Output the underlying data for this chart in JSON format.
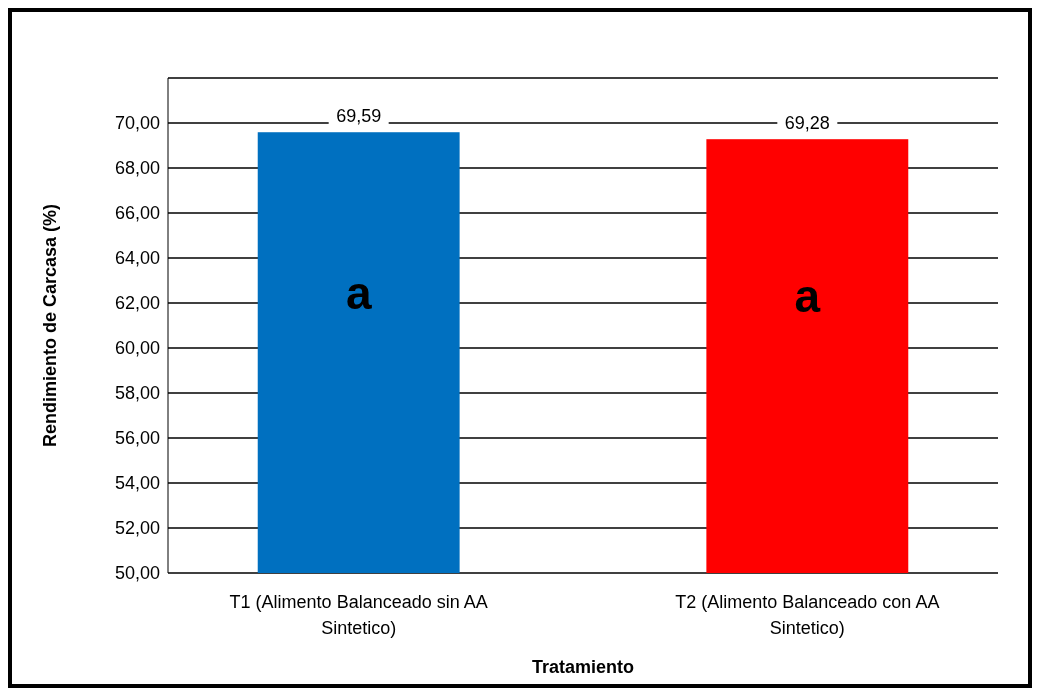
{
  "chart_data": {
    "type": "bar",
    "xlabel": "Tratamiento",
    "ylabel": "Rendimiento de Carcasa  (%)",
    "categories": [
      "T1 (Alimento Balanceado sin AA Sintetico)",
      "T2 (Alimento Balanceado con AA Sintetico)"
    ],
    "values": [
      69.59,
      69.28
    ],
    "colors": [
      "#0070c0",
      "#ff0000"
    ],
    "value_labels": [
      "69,59",
      "69,28"
    ],
    "ylim": [
      50,
      72
    ],
    "yticks": [
      {
        "value": 50,
        "label": "50,00"
      },
      {
        "value": 52,
        "label": "52,00"
      },
      {
        "value": 54,
        "label": "54,00"
      },
      {
        "value": 56,
        "label": "56,00"
      },
      {
        "value": 58,
        "label": "58,00"
      },
      {
        "value": 60,
        "label": "60,00"
      },
      {
        "value": 62,
        "label": "62,00"
      },
      {
        "value": 64,
        "label": "64,00"
      },
      {
        "value": 66,
        "label": "66,00"
      },
      {
        "value": 68,
        "label": "68,00"
      },
      {
        "value": 70,
        "label": "70,00"
      },
      {
        "value": 72,
        "label": null
      }
    ],
    "grid": true,
    "annotations": [
      "a",
      "a"
    ]
  }
}
